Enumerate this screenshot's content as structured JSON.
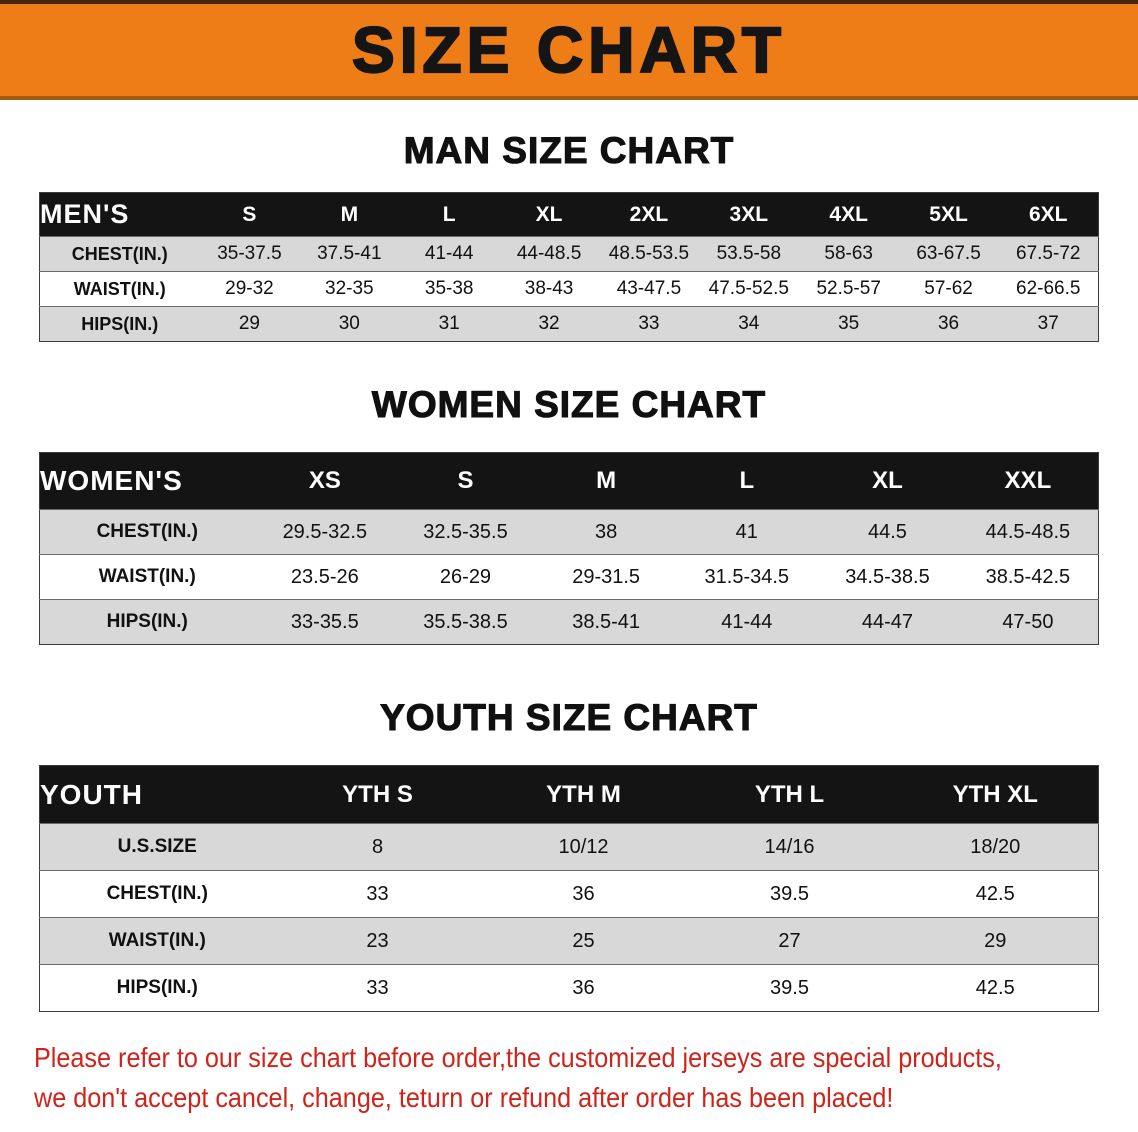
{
  "colors": {
    "banner_orange": "#ee7d18",
    "header_black": "#141414",
    "row_gray": "#d8d8d8",
    "notice_red": "#d0231a"
  },
  "banner": {
    "title": "SIZE CHART"
  },
  "man": {
    "heading": "MAN SIZE CHART",
    "table": {
      "header_label": "MEN'S",
      "columns": [
        "S",
        "M",
        "L",
        "XL",
        "2XL",
        "3XL",
        "4XL",
        "5XL",
        "6XL"
      ],
      "rows": [
        {
          "label": "CHEST(IN.)",
          "values": [
            "35-37.5",
            "37.5-41",
            "41-44",
            "44-48.5",
            "48.5-53.5",
            "53.5-58",
            "58-63",
            "63-67.5",
            "67.5-72"
          ]
        },
        {
          "label": "WAIST(IN.)",
          "values": [
            "29-32",
            "32-35",
            "35-38",
            "38-43",
            "43-47.5",
            "47.5-52.5",
            "52.5-57",
            "57-62",
            "62-66.5"
          ]
        },
        {
          "label": "HIPS(IN.)",
          "values": [
            "29",
            "30",
            "31",
            "32",
            "33",
            "34",
            "35",
            "36",
            "37"
          ]
        }
      ]
    }
  },
  "women": {
    "heading": "WOMEN SIZE CHART",
    "table": {
      "header_label": "WOMEN'S",
      "columns": [
        "XS",
        "S",
        "M",
        "L",
        "XL",
        "XXL"
      ],
      "rows": [
        {
          "label": "CHEST(IN.)",
          "values": [
            "29.5-32.5",
            "32.5-35.5",
            "38",
            "41",
            "44.5",
            "44.5-48.5"
          ]
        },
        {
          "label": "WAIST(IN.)",
          "values": [
            "23.5-26",
            "26-29",
            "29-31.5",
            "31.5-34.5",
            "34.5-38.5",
            "38.5-42.5"
          ]
        },
        {
          "label": "HIPS(IN.)",
          "values": [
            "33-35.5",
            "35.5-38.5",
            "38.5-41",
            "41-44",
            "44-47",
            "47-50"
          ]
        }
      ]
    }
  },
  "youth": {
    "heading": "YOUTH SIZE CHART",
    "table": {
      "header_label": "YOUTH",
      "columns": [
        "YTH S",
        "YTH M",
        "YTH L",
        "YTH XL"
      ],
      "rows": [
        {
          "label": "U.S.SIZE",
          "values": [
            "8",
            "10/12",
            "14/16",
            "18/20"
          ]
        },
        {
          "label": "CHEST(IN.)",
          "values": [
            "33",
            "36",
            "39.5",
            "42.5"
          ]
        },
        {
          "label": "WAIST(IN.)",
          "values": [
            "23",
            "25",
            "27",
            "29"
          ]
        },
        {
          "label": "HIPS(IN.)",
          "values": [
            "33",
            "36",
            "39.5",
            "42.5"
          ]
        }
      ]
    }
  },
  "footer": {
    "line1": "Please refer to our size chart before order,the customized jerseys are special products,",
    "line2": "we don't accept cancel, change, teturn or refund after order has been placed!"
  }
}
